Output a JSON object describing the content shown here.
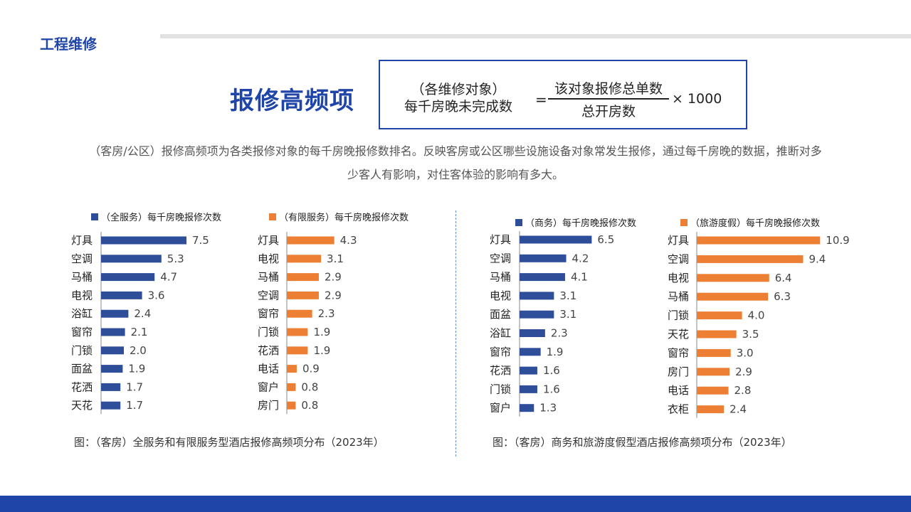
{
  "header": {
    "section": "工程维修",
    "title": "报修高频项"
  },
  "formula": {
    "left_line1": "（各维修对象）",
    "left_line2": "每千房晚未完成数",
    "equals": "=",
    "numerator": "该对象报修总单数",
    "denominator": "总开房数",
    "multiplier": "× 1000"
  },
  "description": "（客房/公区）报修高频项为各类报修对象的每千房晚报修数排名。反映客房或公区哪些设施设备对象常发生报修，通过每千房晚的数据，推断对多少客人有影响，对住客体验的影响有多大。",
  "captions": {
    "left": "图：（客房）全服务和有限服务型酒店报修高频项分布（2023年）",
    "right": "图：（客房）商务和旅游度假型酒店报修高频项分布（2023年）"
  },
  "colors": {
    "blue": "#2f4e9a",
    "orange": "#ec7f34",
    "brand": "#1f45a8"
  },
  "chart_data": [
    {
      "type": "bar",
      "orientation": "horizontal",
      "legend": "（全服务）每千房晚报修次数",
      "color": "#2f4e9a",
      "categories": [
        "灯具",
        "空调",
        "马桶",
        "电视",
        "浴缸",
        "窗帘",
        "门锁",
        "面盆",
        "花洒",
        "天花"
      ],
      "values": [
        7.5,
        5.3,
        4.7,
        3.6,
        2.4,
        2.1,
        2.0,
        1.9,
        1.7,
        1.7
      ],
      "labels": [
        "7.5",
        "5.3",
        "4.7",
        "3.6",
        "2.4",
        "2.1",
        "2.0",
        "1.9",
        "1.7",
        "1.7"
      ]
    },
    {
      "type": "bar",
      "orientation": "horizontal",
      "legend": "（有限服务）每千房晚报修次数",
      "color": "#ec7f34",
      "categories": [
        "灯具",
        "电视",
        "马桶",
        "空调",
        "窗帘",
        "门锁",
        "花洒",
        "电话",
        "窗户",
        "房门"
      ],
      "values": [
        4.3,
        3.1,
        2.9,
        2.9,
        2.3,
        1.9,
        1.9,
        0.9,
        0.8,
        0.8
      ],
      "labels": [
        "4.3",
        "3.1",
        "2.9",
        "2.9",
        "2.3",
        "1.9",
        "1.9",
        "0.9",
        "0.8",
        "0.8"
      ]
    },
    {
      "type": "bar",
      "orientation": "horizontal",
      "legend": "（商务）每千房晚报修次数",
      "color": "#2f4e9a",
      "categories": [
        "灯具",
        "空调",
        "马桶",
        "电视",
        "面盆",
        "浴缸",
        "窗帘",
        "花洒",
        "门锁",
        "窗户"
      ],
      "values": [
        6.5,
        4.2,
        4.1,
        3.1,
        3.1,
        2.3,
        1.9,
        1.6,
        1.6,
        1.3
      ],
      "labels": [
        "6.5",
        "4.2",
        "4.1",
        "3.1",
        "3.1",
        "2.3",
        "1.9",
        "1.6",
        "1.6",
        "1.3"
      ]
    },
    {
      "type": "bar",
      "orientation": "horizontal",
      "legend": "（旅游度假）每千房晚报修次数",
      "color": "#ec7f34",
      "categories": [
        "灯具",
        "空调",
        "电视",
        "马桶",
        "门锁",
        "天花",
        "窗帘",
        "房门",
        "电话",
        "衣柜"
      ],
      "values": [
        10.9,
        9.4,
        6.4,
        6.3,
        4.0,
        3.5,
        3.0,
        2.9,
        2.8,
        2.4
      ],
      "labels": [
        "10.9",
        "9.4",
        "6.4",
        "6.3",
        "4.0",
        "3.5",
        "3.0",
        "2.9",
        "2.8",
        "2.4"
      ]
    }
  ]
}
